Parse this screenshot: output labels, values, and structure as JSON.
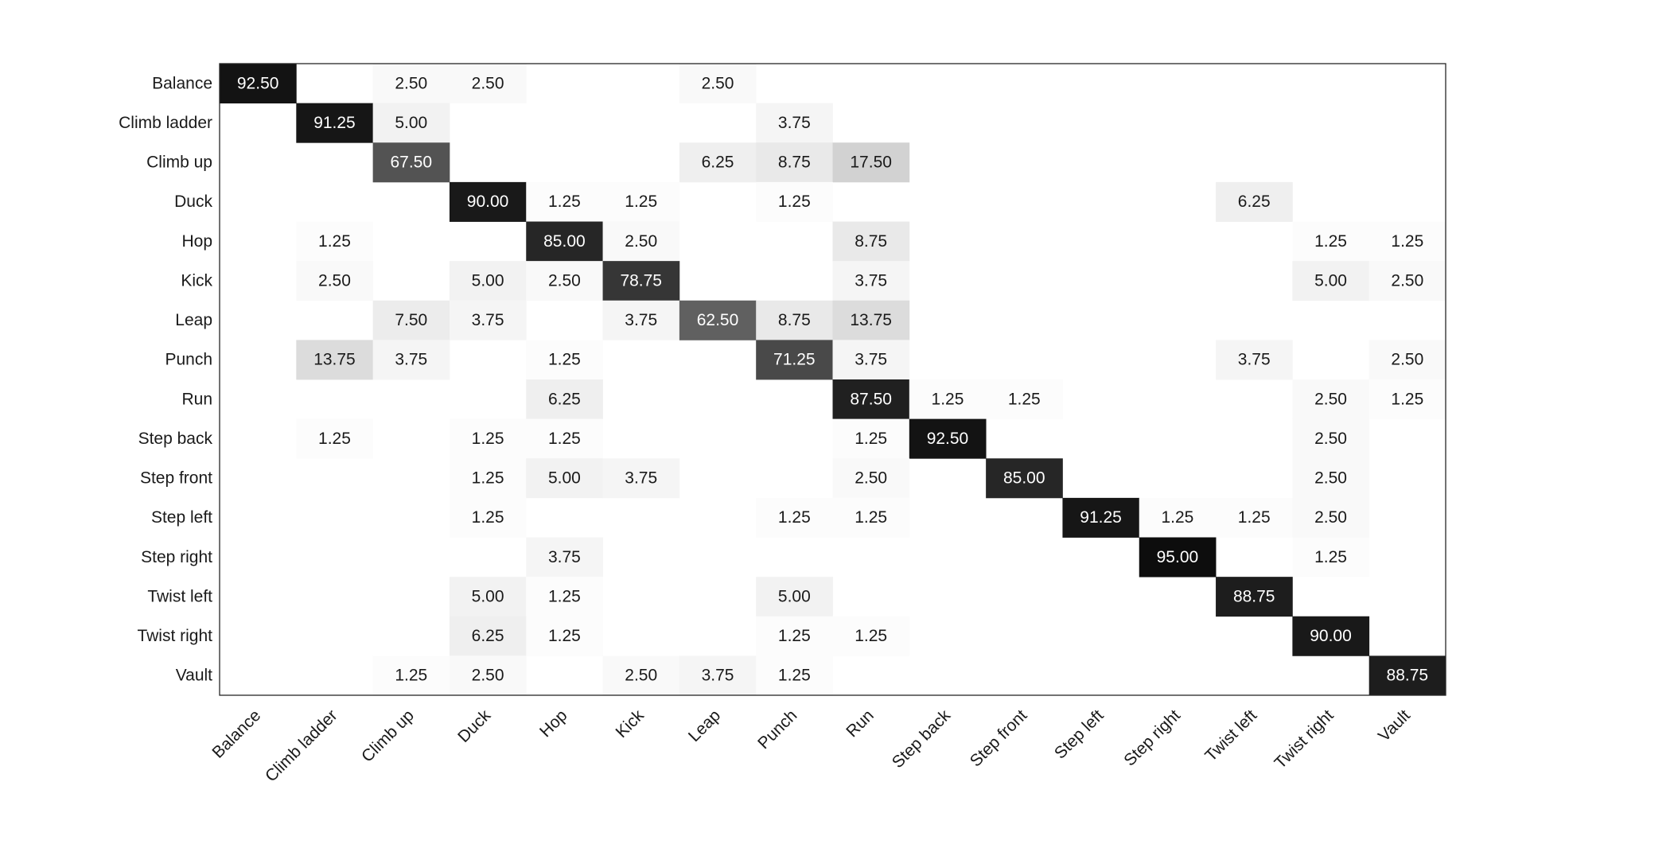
{
  "chart_data": {
    "type": "heatmap",
    "title": "",
    "xlabel": "",
    "ylabel": "",
    "x_labels": [
      "Balance",
      "Climb ladder",
      "Climb up",
      "Duck",
      "Hop",
      "Kick",
      "Leap",
      "Punch",
      "Run",
      "Step back",
      "Step front",
      "Step left",
      "Step right",
      "Twist left",
      "Twist right",
      "Vault"
    ],
    "y_labels": [
      "Balance",
      "Climb ladder",
      "Climb up",
      "Duck",
      "Hop",
      "Kick",
      "Leap",
      "Punch",
      "Run",
      "Step back",
      "Step front",
      "Step left",
      "Step right",
      "Twist left",
      "Twist right",
      "Vault"
    ],
    "colormap": "gray-reversed",
    "value_range": [
      0,
      100
    ],
    "cells": [
      {
        "row": "Balance",
        "col": "Balance",
        "value": "92.50"
      },
      {
        "row": "Balance",
        "col": "Climb up",
        "value": "2.50"
      },
      {
        "row": "Balance",
        "col": "Duck",
        "value": "2.50"
      },
      {
        "row": "Balance",
        "col": "Leap",
        "value": "2.50"
      },
      {
        "row": "Climb ladder",
        "col": "Climb ladder",
        "value": "91.25"
      },
      {
        "row": "Climb ladder",
        "col": "Climb up",
        "value": "5.00"
      },
      {
        "row": "Climb ladder",
        "col": "Punch",
        "value": "3.75"
      },
      {
        "row": "Climb up",
        "col": "Climb up",
        "value": "67.50"
      },
      {
        "row": "Climb up",
        "col": "Leap",
        "value": "6.25"
      },
      {
        "row": "Climb up",
        "col": "Punch",
        "value": "8.75"
      },
      {
        "row": "Climb up",
        "col": "Run",
        "value": "17.50"
      },
      {
        "row": "Duck",
        "col": "Duck",
        "value": "90.00"
      },
      {
        "row": "Duck",
        "col": "Hop",
        "value": "1.25"
      },
      {
        "row": "Duck",
        "col": "Kick",
        "value": "1.25"
      },
      {
        "row": "Duck",
        "col": "Punch",
        "value": "1.25"
      },
      {
        "row": "Duck",
        "col": "Twist left",
        "value": "6.25"
      },
      {
        "row": "Hop",
        "col": "Climb ladder",
        "value": "1.25"
      },
      {
        "row": "Hop",
        "col": "Hop",
        "value": "85.00"
      },
      {
        "row": "Hop",
        "col": "Kick",
        "value": "2.50"
      },
      {
        "row": "Hop",
        "col": "Run",
        "value": "8.75"
      },
      {
        "row": "Hop",
        "col": "Twist right",
        "value": "1.25"
      },
      {
        "row": "Hop",
        "col": "Vault",
        "value": "1.25"
      },
      {
        "row": "Kick",
        "col": "Climb ladder",
        "value": "2.50"
      },
      {
        "row": "Kick",
        "col": "Duck",
        "value": "5.00"
      },
      {
        "row": "Kick",
        "col": "Hop",
        "value": "2.50"
      },
      {
        "row": "Kick",
        "col": "Kick",
        "value": "78.75"
      },
      {
        "row": "Kick",
        "col": "Run",
        "value": "3.75"
      },
      {
        "row": "Kick",
        "col": "Twist right",
        "value": "5.00"
      },
      {
        "row": "Kick",
        "col": "Vault",
        "value": "2.50"
      },
      {
        "row": "Leap",
        "col": "Climb up",
        "value": "7.50"
      },
      {
        "row": "Leap",
        "col": "Duck",
        "value": "3.75"
      },
      {
        "row": "Leap",
        "col": "Kick",
        "value": "3.75"
      },
      {
        "row": "Leap",
        "col": "Leap",
        "value": "62.50"
      },
      {
        "row": "Leap",
        "col": "Punch",
        "value": "8.75"
      },
      {
        "row": "Leap",
        "col": "Run",
        "value": "13.75"
      },
      {
        "row": "Punch",
        "col": "Climb ladder",
        "value": "13.75"
      },
      {
        "row": "Punch",
        "col": "Climb up",
        "value": "3.75"
      },
      {
        "row": "Punch",
        "col": "Hop",
        "value": "1.25"
      },
      {
        "row": "Punch",
        "col": "Punch",
        "value": "71.25"
      },
      {
        "row": "Punch",
        "col": "Run",
        "value": "3.75"
      },
      {
        "row": "Punch",
        "col": "Twist left",
        "value": "3.75"
      },
      {
        "row": "Punch",
        "col": "Vault",
        "value": "2.50"
      },
      {
        "row": "Run",
        "col": "Hop",
        "value": "6.25"
      },
      {
        "row": "Run",
        "col": "Run",
        "value": "87.50"
      },
      {
        "row": "Run",
        "col": "Step back",
        "value": "1.25"
      },
      {
        "row": "Run",
        "col": "Step front",
        "value": "1.25"
      },
      {
        "row": "Run",
        "col": "Twist right",
        "value": "2.50"
      },
      {
        "row": "Run",
        "col": "Vault",
        "value": "1.25"
      },
      {
        "row": "Step back",
        "col": "Climb ladder",
        "value": "1.25"
      },
      {
        "row": "Step back",
        "col": "Duck",
        "value": "1.25"
      },
      {
        "row": "Step back",
        "col": "Hop",
        "value": "1.25"
      },
      {
        "row": "Step back",
        "col": "Run",
        "value": "1.25"
      },
      {
        "row": "Step back",
        "col": "Step back",
        "value": "92.50"
      },
      {
        "row": "Step back",
        "col": "Twist right",
        "value": "2.50"
      },
      {
        "row": "Step front",
        "col": "Duck",
        "value": "1.25"
      },
      {
        "row": "Step front",
        "col": "Hop",
        "value": "5.00"
      },
      {
        "row": "Step front",
        "col": "Kick",
        "value": "3.75"
      },
      {
        "row": "Step front",
        "col": "Run",
        "value": "2.50"
      },
      {
        "row": "Step front",
        "col": "Step front",
        "value": "85.00"
      },
      {
        "row": "Step front",
        "col": "Twist right",
        "value": "2.50"
      },
      {
        "row": "Step left",
        "col": "Duck",
        "value": "1.25"
      },
      {
        "row": "Step left",
        "col": "Punch",
        "value": "1.25"
      },
      {
        "row": "Step left",
        "col": "Run",
        "value": "1.25"
      },
      {
        "row": "Step left",
        "col": "Step left",
        "value": "91.25"
      },
      {
        "row": "Step left",
        "col": "Step right",
        "value": "1.25"
      },
      {
        "row": "Step left",
        "col": "Twist left",
        "value": "1.25"
      },
      {
        "row": "Step left",
        "col": "Twist right",
        "value": "2.50"
      },
      {
        "row": "Step right",
        "col": "Hop",
        "value": "3.75"
      },
      {
        "row": "Step right",
        "col": "Step right",
        "value": "95.00"
      },
      {
        "row": "Step right",
        "col": "Twist right",
        "value": "1.25"
      },
      {
        "row": "Twist left",
        "col": "Duck",
        "value": "5.00"
      },
      {
        "row": "Twist left",
        "col": "Hop",
        "value": "1.25"
      },
      {
        "row": "Twist left",
        "col": "Punch",
        "value": "5.00"
      },
      {
        "row": "Twist left",
        "col": "Twist left",
        "value": "88.75"
      },
      {
        "row": "Twist right",
        "col": "Duck",
        "value": "6.25"
      },
      {
        "row": "Twist right",
        "col": "Hop",
        "value": "1.25"
      },
      {
        "row": "Twist right",
        "col": "Punch",
        "value": "1.25"
      },
      {
        "row": "Twist right",
        "col": "Run",
        "value": "1.25"
      },
      {
        "row": "Twist right",
        "col": "Twist right",
        "value": "90.00"
      },
      {
        "row": "Vault",
        "col": "Climb up",
        "value": "1.25"
      },
      {
        "row": "Vault",
        "col": "Duck",
        "value": "2.50"
      },
      {
        "row": "Vault",
        "col": "Kick",
        "value": "2.50"
      },
      {
        "row": "Vault",
        "col": "Leap",
        "value": "3.75"
      },
      {
        "row": "Vault",
        "col": "Punch",
        "value": "1.25"
      },
      {
        "row": "Vault",
        "col": "Vault",
        "value": "88.75"
      }
    ]
  }
}
